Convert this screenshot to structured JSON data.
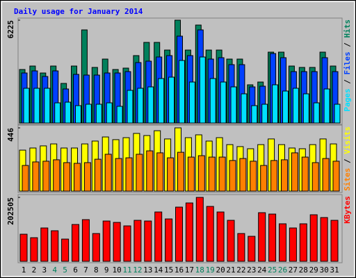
{
  "chart_data": [
    {
      "type": "bar",
      "title": "Daily usage for January 2014",
      "ylim": [
        0,
        6225
      ],
      "yticks": [
        6225
      ],
      "legend_separator": " / ",
      "series": [
        {
          "name": "Hits",
          "color": "#00805c",
          "values": [
            3239,
            3449,
            3028,
            3449,
            2397,
            3449,
            5636,
            3365,
            3870,
            3239,
            3323,
            4080,
            4879,
            4879,
            4416,
            6225,
            4416,
            5930,
            4416,
            4416,
            3870,
            3870,
            2313,
            2481,
            4290,
            4290,
            3449,
            3365,
            3365,
            4290,
            3449
          ]
        },
        {
          "name": "Files",
          "color": "#0040ff",
          "values": [
            3028,
            3155,
            2818,
            3155,
            2061,
            2944,
            2902,
            2902,
            3028,
            3028,
            3112,
            3659,
            3744,
            3996,
            4080,
            5258,
            4080,
            5636,
            3870,
            3954,
            3533,
            3533,
            2187,
            2229,
            4206,
            3954,
            3112,
            3112,
            3112,
            3954,
            3112
          ]
        },
        {
          "name": "Pages",
          "color": "#00e0ff",
          "values": [
            2103,
            2103,
            2103,
            1220,
            1262,
            1052,
            1136,
            1136,
            1220,
            1010,
            1977,
            2103,
            2187,
            2692,
            2776,
            3785,
            2481,
            3996,
            2692,
            2481,
            2187,
            1767,
            1052,
            1136,
            2313,
            1935,
            2103,
            1767,
            1220,
            2061,
            1136
          ]
        }
      ]
    },
    {
      "type": "bar",
      "ylim": [
        0,
        446
      ],
      "yticks": [
        446
      ],
      "legend_separator": " / ",
      "series": [
        {
          "name": "Visits",
          "color": "#ffff00",
          "values": [
            289,
            304,
            319,
            333,
            304,
            304,
            333,
            353,
            382,
            363,
            377,
            407,
            392,
            426,
            368,
            446,
            377,
            397,
            353,
            377,
            328,
            314,
            299,
            328,
            368,
            328,
            304,
            299,
            328,
            368,
            333
          ]
        },
        {
          "name": "Sites",
          "color": "#ff8000",
          "values": [
            181,
            206,
            211,
            221,
            201,
            196,
            201,
            225,
            260,
            230,
            235,
            260,
            284,
            270,
            235,
            274,
            240,
            250,
            240,
            240,
            216,
            230,
            211,
            181,
            216,
            221,
            270,
            240,
            201,
            230,
            211
          ]
        }
      ]
    },
    {
      "type": "bar",
      "ylim": [
        0,
        202505
      ],
      "yticks": [
        202505
      ],
      "categories": [
        "1",
        "2",
        "3",
        "4",
        "5",
        "6",
        "7",
        "8",
        "9",
        "10",
        "11",
        "12",
        "13",
        "14",
        "15",
        "16",
        "17",
        "18",
        "19",
        "20",
        "21",
        "22",
        "23",
        "24",
        "25",
        "26",
        "27",
        "28",
        "29",
        "30",
        "31"
      ],
      "category_colors": [
        "#000000",
        "#000000",
        "#000000",
        "#00805c",
        "#00805c",
        "#000000",
        "#000000",
        "#000000",
        "#000000",
        "#000000",
        "#00805c",
        "#00805c",
        "#000000",
        "#000000",
        "#000000",
        "#000000",
        "#000000",
        "#00805c",
        "#00805c",
        "#000000",
        "#000000",
        "#000000",
        "#000000",
        "#000000",
        "#00805c",
        "#00805c",
        "#000000",
        "#000000",
        "#000000",
        "#000000",
        "#000000"
      ],
      "series": [
        {
          "name": "KBytes",
          "color": "#ff0000",
          "values": [
            85846,
            74840,
            105655,
            96851,
            70438,
            116661,
            132069,
            88047,
            127666,
            123264,
            112258,
            129868,
            127666,
            156279,
            134270,
            171693,
            184900,
            202505,
            173894,
            156279,
            129868,
            88047,
            79243,
            154078,
            149676,
            118862,
            105655,
            118862,
            147475,
            138671,
            129868
          ]
        }
      ]
    }
  ]
}
